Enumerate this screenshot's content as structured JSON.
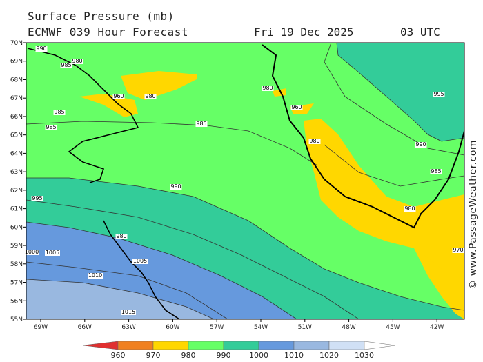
{
  "header": {
    "title": "Surface Pressure (mb)",
    "model_line": "ECMWF 039 Hour Forecast",
    "date": "Fri 19 Dec 2025",
    "time": "03 UTC"
  },
  "watermark": "© www.PassageWeather.com",
  "map": {
    "lat_ticks": [
      "70N",
      "69N",
      "68N",
      "67N",
      "66N",
      "65N",
      "64N",
      "63N",
      "62N",
      "61N",
      "60N",
      "59N",
      "58N",
      "57N",
      "56N",
      "55N"
    ],
    "lon_ticks": [
      "69W",
      "66W",
      "63W",
      "60W",
      "57W",
      "54W",
      "51W",
      "48W",
      "45W",
      "42W"
    ],
    "contour_labels": [
      "990",
      "985",
      "980",
      "960",
      "980",
      "985",
      "985",
      "985",
      "980",
      "960",
      "995",
      "980",
      "980",
      "990",
      "990",
      "985",
      "995",
      "980",
      "1000",
      "1005",
      "1005",
      "1010",
      "1015",
      "970"
    ]
  },
  "colorbar": {
    "labels": [
      "960",
      "970",
      "980",
      "990",
      "1000",
      "1010",
      "1020",
      "1030"
    ],
    "colors": [
      "#e03030",
      "#f08020",
      "#ffd700",
      "#66ff66",
      "#33cc99",
      "#6699dd",
      "#99b8e0",
      "#d0e0f5"
    ]
  },
  "colors": {
    "c980": "#ffd700",
    "c985": "#66ff66",
    "c995": "#33cc99",
    "c1005": "#6699dd",
    "c1010": "#99b8e0"
  }
}
